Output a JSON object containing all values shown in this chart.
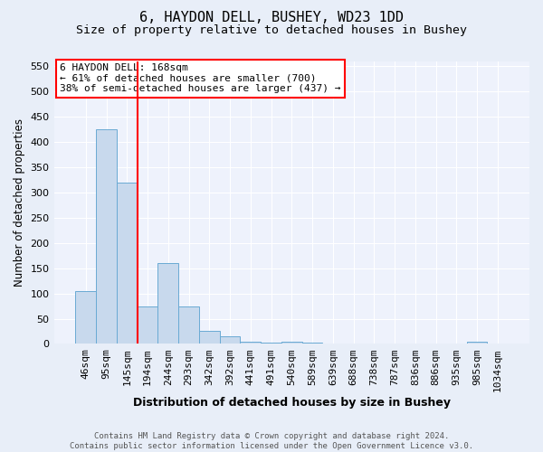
{
  "title": "6, HAYDON DELL, BUSHEY, WD23 1DD",
  "subtitle": "Size of property relative to detached houses in Bushey",
  "xlabel": "Distribution of detached houses by size in Bushey",
  "ylabel": "Number of detached properties",
  "categories": [
    "46sqm",
    "95sqm",
    "145sqm",
    "194sqm",
    "244sqm",
    "293sqm",
    "342sqm",
    "392sqm",
    "441sqm",
    "491sqm",
    "540sqm",
    "589sqm",
    "639sqm",
    "688sqm",
    "738sqm",
    "787sqm",
    "836sqm",
    "886sqm",
    "935sqm",
    "985sqm",
    "1034sqm"
  ],
  "values": [
    105,
    425,
    320,
    75,
    160,
    75,
    25,
    15,
    5,
    3,
    5,
    3,
    0,
    0,
    0,
    0,
    0,
    0,
    0,
    5,
    0
  ],
  "bar_color": "#c8d9ed",
  "bar_edge_color": "#6aaad4",
  "vline_x": 2.5,
  "vline_color": "red",
  "annotation_text": "6 HAYDON DELL: 168sqm\n← 61% of detached houses are smaller (700)\n38% of semi-detached houses are larger (437) →",
  "annotation_box_color": "white",
  "annotation_box_edge_color": "red",
  "ylim": [
    0,
    560
  ],
  "yticks": [
    0,
    50,
    100,
    150,
    200,
    250,
    300,
    350,
    400,
    450,
    500,
    550
  ],
  "bg_color": "#e8eef8",
  "plot_bg_color": "#eef2fc",
  "footnote": "Contains HM Land Registry data © Crown copyright and database right 2024.\nContains public sector information licensed under the Open Government Licence v3.0.",
  "title_fontsize": 11,
  "subtitle_fontsize": 9.5,
  "xlabel_fontsize": 9,
  "ylabel_fontsize": 8.5,
  "tick_fontsize": 8,
  "annotation_fontsize": 8,
  "footnote_fontsize": 6.5
}
